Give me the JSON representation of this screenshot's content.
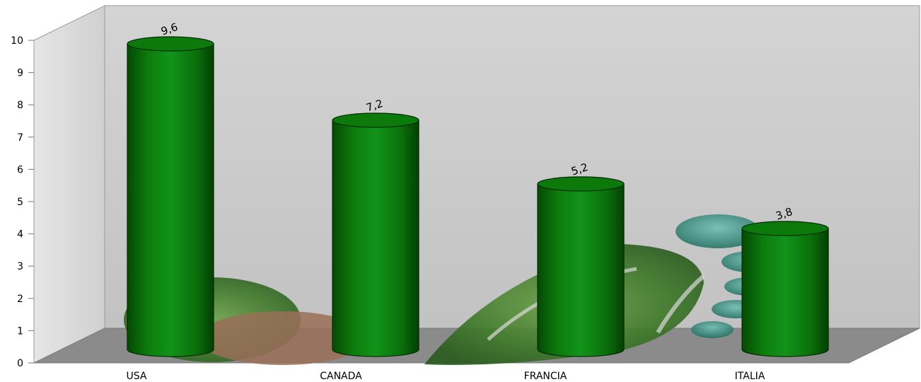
{
  "chart_data": {
    "type": "bar",
    "style": "3d-cylinder",
    "categories": [
      "USA",
      "CANADA",
      "FRANCIA",
      "ITALIA"
    ],
    "values": [
      9.6,
      7.2,
      5.2,
      3.8
    ],
    "value_labels": [
      "9,6",
      "7,2",
      "5,2",
      "3,8"
    ],
    "y_ticks": [
      "0",
      "1",
      "2",
      "3",
      "4",
      "5",
      "6",
      "7",
      "8",
      "9",
      "10"
    ],
    "ylim": [
      0,
      10
    ],
    "grid": false,
    "legend": "none",
    "colors": {
      "bar": "#0f8a0f",
      "bar_dark": "#075c07",
      "wall": "#c8c8c8",
      "floor": "#8c8c8c"
    }
  }
}
